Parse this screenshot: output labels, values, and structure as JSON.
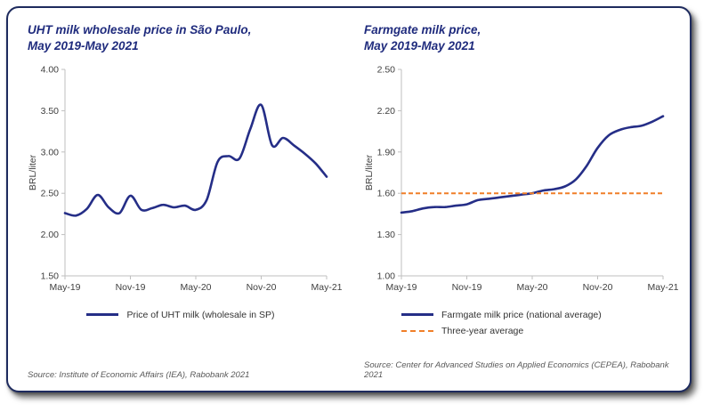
{
  "chart_data": [
    {
      "type": "line",
      "title_lines": [
        "UHT milk wholesale price in São Paulo,",
        "May 2019-May 2021"
      ],
      "xlabel": "",
      "ylabel": "BRL/liter",
      "ylim": [
        1.5,
        4.0
      ],
      "yticks": [
        "1.50",
        "2.00",
        "2.50",
        "3.00",
        "3.50",
        "4.00"
      ],
      "x": [
        "May-19",
        "Jun-19",
        "Jul-19",
        "Aug-19",
        "Sep-19",
        "Oct-19",
        "Nov-19",
        "Dec-19",
        "Jan-20",
        "Feb-20",
        "Mar-20",
        "Apr-20",
        "May-20",
        "Jun-20",
        "Jul-20",
        "Aug-20",
        "Sep-20",
        "Oct-20",
        "Nov-20",
        "Dec-20",
        "Jan-21",
        "Feb-21",
        "Mar-21",
        "Apr-21",
        "May-21"
      ],
      "xtick_labels": [
        "May-19",
        "Nov-19",
        "May-20",
        "Nov-20",
        "May-21"
      ],
      "xtick_indices": [
        0,
        6,
        12,
        18,
        24
      ],
      "grid": false,
      "legend_position": "bottom",
      "series": [
        {
          "name": "Price of UHT milk (wholesale in SP)",
          "color": "#252e87",
          "dash": false,
          "values": [
            2.26,
            2.23,
            2.31,
            2.48,
            2.33,
            2.26,
            2.47,
            2.3,
            2.32,
            2.36,
            2.33,
            2.35,
            2.3,
            2.42,
            2.88,
            2.95,
            2.92,
            3.28,
            3.57,
            3.08,
            3.17,
            3.08,
            2.98,
            2.86,
            2.7
          ]
        }
      ],
      "source": "Source: Institute of Economic Affairs (IEA), Rabobank 2021"
    },
    {
      "type": "line",
      "title_lines": [
        "Farmgate milk price,",
        "May 2019-May 2021"
      ],
      "xlabel": "",
      "ylabel": "BRL/liter",
      "ylim": [
        1.0,
        2.5
      ],
      "yticks": [
        "1.00",
        "1.30",
        "1.60",
        "1.90",
        "2.20",
        "2.50"
      ],
      "x": [
        "May-19",
        "Jun-19",
        "Jul-19",
        "Aug-19",
        "Sep-19",
        "Oct-19",
        "Nov-19",
        "Dec-19",
        "Jan-20",
        "Feb-20",
        "Mar-20",
        "Apr-20",
        "May-20",
        "Jun-20",
        "Jul-20",
        "Aug-20",
        "Sep-20",
        "Oct-20",
        "Nov-20",
        "Dec-20",
        "Jan-21",
        "Feb-21",
        "Mar-21",
        "Apr-21",
        "May-21"
      ],
      "xtick_labels": [
        "May-19",
        "Nov-19",
        "May-20",
        "Nov-20",
        "May-21"
      ],
      "xtick_indices": [
        0,
        6,
        12,
        18,
        24
      ],
      "grid": false,
      "legend_position": "bottom",
      "series": [
        {
          "name": "Farmgate milk price (national average)",
          "color": "#252e87",
          "dash": false,
          "values": [
            1.46,
            1.47,
            1.49,
            1.5,
            1.5,
            1.51,
            1.52,
            1.55,
            1.56,
            1.57,
            1.58,
            1.59,
            1.6,
            1.62,
            1.63,
            1.65,
            1.7,
            1.8,
            1.93,
            2.02,
            2.06,
            2.08,
            2.09,
            2.12,
            2.16
          ]
        },
        {
          "name": "Three-year average",
          "color": "#f07f29",
          "dash": true,
          "value": 1.6
        }
      ],
      "source": "Source: Center for Advanced Studies on Applied Economics (CEPEA), Rabobank 2021"
    }
  ]
}
